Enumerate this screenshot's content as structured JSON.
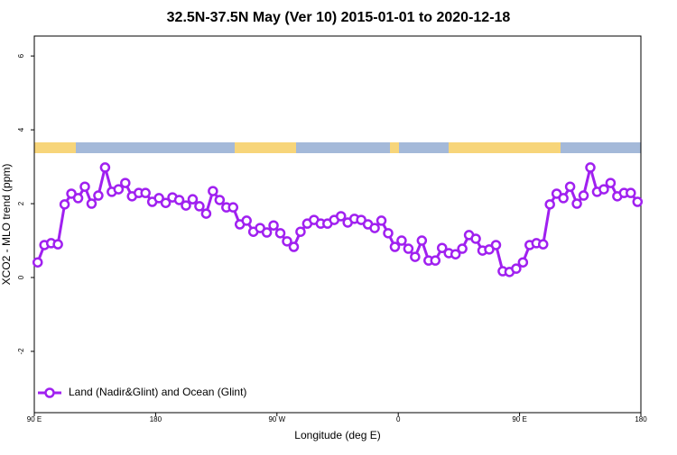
{
  "chart_data": {
    "type": "line",
    "title": "32.5N-37.5N May (Ver 10)   2015-01-01 to 2020-12-18",
    "x_label": "Longitude (deg E)",
    "y_label": "XCO2 - MLO trend (ppm)",
    "x": [
      92.5,
      97.5,
      102.5,
      107.5,
      112.5,
      117.5,
      122.5,
      127.5,
      132.5,
      137.5,
      142.5,
      147.5,
      152.5,
      157.5,
      162.5,
      167.5,
      172.5,
      177.5,
      182.5,
      187.5,
      192.5,
      197.5,
      202.5,
      207.5,
      212.5,
      217.5,
      222.5,
      227.5,
      232.5,
      237.5,
      242.5,
      247.5,
      252.5,
      257.5,
      262.5,
      267.5,
      272.5,
      277.5,
      282.5,
      287.5,
      292.5,
      297.5,
      302.5,
      307.5,
      312.5,
      317.5,
      322.5,
      327.5,
      332.5,
      337.5,
      342.5,
      347.5,
      352.5,
      357.5,
      362.5,
      367.5,
      372.5,
      377.5,
      382.5,
      387.5,
      392.5,
      397.5,
      402.5,
      407.5,
      412.5,
      417.5,
      422.5,
      427.5,
      432.5,
      437.5,
      442.5,
      447.5,
      452.5,
      457.5,
      462.5,
      467.5,
      472.5,
      477.5,
      482.5,
      487.5,
      492.5,
      497.5,
      502.5,
      507.5,
      512.5,
      517.5,
      522.5,
      527.5,
      532.5,
      537.5
    ],
    "series": [
      {
        "name": "Land (Nadir&Glint) and Ocean (Glint)",
        "color": "#a020f0",
        "values": [
          0.41,
          0.88,
          0.93,
          0.9,
          1.98,
          2.27,
          2.15,
          2.46,
          2.0,
          2.22,
          2.98,
          2.32,
          2.39,
          2.56,
          2.2,
          2.29,
          2.29,
          2.05,
          2.15,
          2.02,
          2.17,
          2.1,
          1.95,
          2.12,
          1.93,
          1.73,
          2.34,
          2.1,
          1.9,
          1.9,
          1.44,
          1.54,
          1.24,
          1.34,
          1.22,
          1.41,
          1.2,
          0.98,
          0.83,
          1.24,
          1.46,
          1.56,
          1.46,
          1.46,
          1.56,
          1.66,
          1.49,
          1.59,
          1.56,
          1.44,
          1.34,
          1.54,
          1.2,
          0.83,
          1.0,
          0.78,
          0.56,
          1.0,
          0.46,
          0.46,
          0.8,
          0.66,
          0.63,
          0.78,
          1.15,
          1.05,
          0.73,
          0.76,
          0.88,
          0.17,
          0.15,
          0.24,
          0.41,
          0.88,
          0.93,
          0.9,
          1.98,
          2.27,
          2.15,
          2.46,
          2.0,
          2.22,
          2.98,
          2.32,
          2.39,
          2.56,
          2.2,
          2.29,
          2.29,
          2.05
        ]
      }
    ],
    "xlim": [
      90,
      540
    ],
    "xticks": [
      {
        "value": 90,
        "label": "90 E"
      },
      180,
      {
        "value": 270,
        "label": "90 W"
      },
      {
        "value": 360,
        "label": "0"
      },
      {
        "value": 450,
        "label": "90 E"
      },
      {
        "value": 540,
        "label": "180"
      }
    ],
    "ylim": [
      -3.66,
      6.54
    ],
    "yticks": [
      -2,
      0,
      2,
      4,
      6
    ],
    "legend": "bottomleft"
  }
}
